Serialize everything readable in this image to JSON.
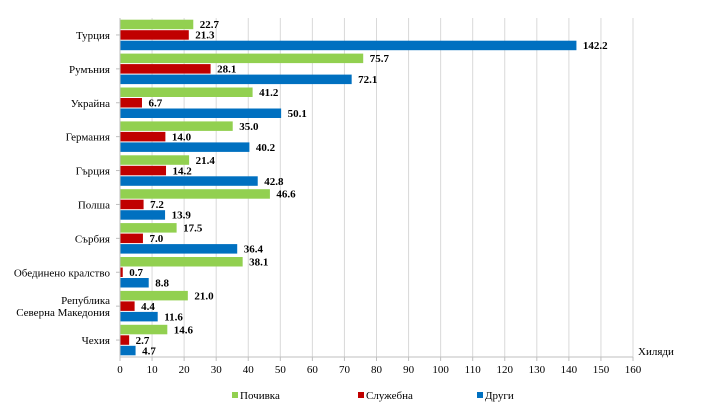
{
  "chart_data": {
    "type": "bar",
    "orientation": "horizontal",
    "title": "",
    "xlabel": "Хиляди",
    "ylabel": "",
    "xlim": [
      0,
      160
    ],
    "xticks": [
      "0",
      "10",
      "20",
      "30",
      "40",
      "50",
      "60",
      "70",
      "80",
      "90",
      "100",
      "110",
      "120",
      "130",
      "140",
      "150",
      "160"
    ],
    "grid": true,
    "legend_position": "bottom",
    "categories": [
      [
        "Турция"
      ],
      [
        "Румъния"
      ],
      [
        "Украйна"
      ],
      [
        "Германия"
      ],
      [
        "Гърция"
      ],
      [
        "Полша"
      ],
      [
        "Сърбия"
      ],
      [
        "Обединено кралство"
      ],
      [
        "Република",
        "Северна Македония"
      ],
      [
        "Чехия"
      ]
    ],
    "series": [
      {
        "name": "Почивка",
        "color": "#92D050",
        "values": [
          22.7,
          75.7,
          41.2,
          35.0,
          21.4,
          46.6,
          17.5,
          38.1,
          21.0,
          14.6
        ],
        "labels": [
          "22.7",
          "75.7",
          "41.2",
          "35.0",
          "21.4",
          "46.6",
          "17.5",
          "38.1",
          "21.0",
          "14.6"
        ]
      },
      {
        "name": "Служебна",
        "color": "#C00000",
        "values": [
          21.3,
          28.1,
          6.7,
          14.0,
          14.2,
          7.2,
          7.0,
          0.7,
          4.4,
          2.7
        ],
        "labels": [
          "21.3",
          "28.1",
          "6.7",
          "14.0",
          "14.2",
          "7.2",
          "7.0",
          "0.7",
          "4.4",
          "2.7"
        ]
      },
      {
        "name": "Други",
        "color": "#0070C0",
        "values": [
          142.2,
          72.1,
          50.1,
          40.2,
          42.8,
          13.9,
          36.4,
          8.8,
          11.6,
          4.7
        ],
        "labels": [
          "142.2",
          "72.1",
          "50.1",
          "40.2",
          "42.8",
          "13.9",
          "36.4",
          "8.8",
          "11.6",
          "4.7"
        ]
      }
    ]
  }
}
